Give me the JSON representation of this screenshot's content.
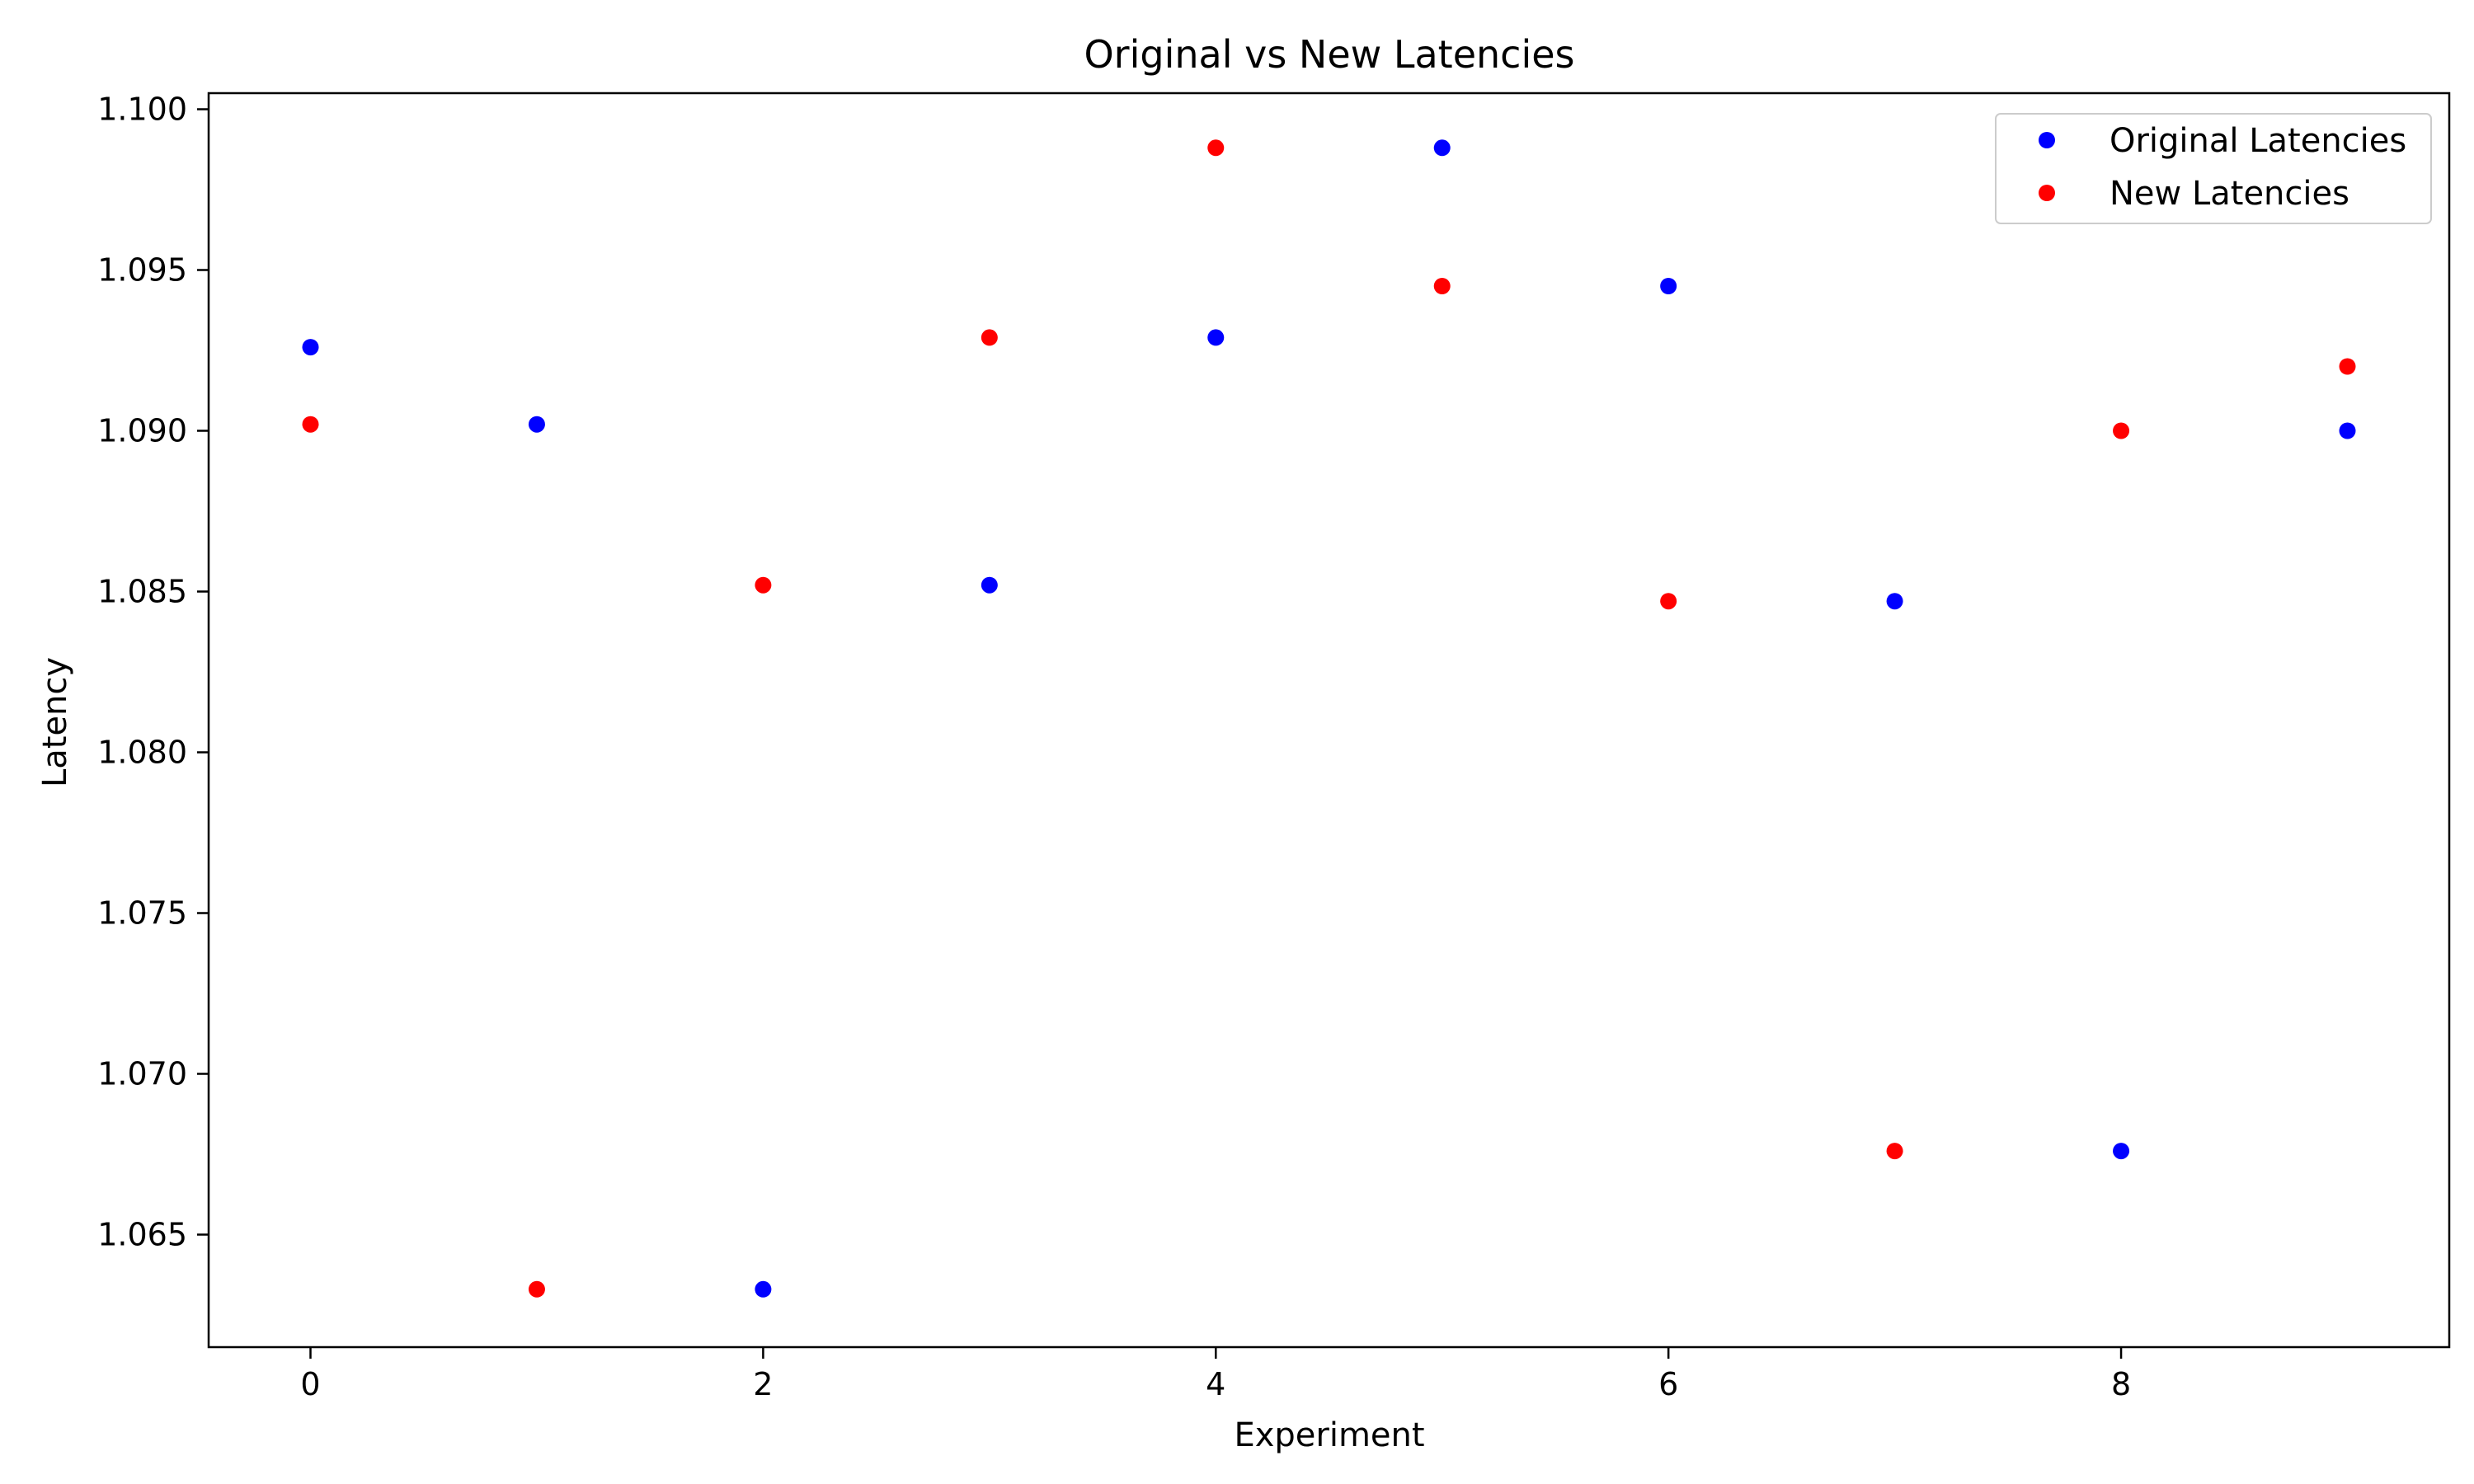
{
  "chart_data": {
    "type": "scatter",
    "title": "Original vs New Latencies",
    "xlabel": "Experiment",
    "ylabel": "Latency",
    "xlim": [
      -0.45,
      9.45
    ],
    "ylim": [
      1.0615,
      1.1005
    ],
    "xticks": [
      0,
      2,
      4,
      6,
      8
    ],
    "xtick_labels": [
      "0",
      "2",
      "4",
      "6",
      "8"
    ],
    "yticks": [
      1.065,
      1.07,
      1.075,
      1.08,
      1.085,
      1.09,
      1.095,
      1.1
    ],
    "ytick_labels": [
      "1.065",
      "1.070",
      "1.075",
      "1.080",
      "1.085",
      "1.090",
      "1.095",
      "1.100"
    ],
    "grid": false,
    "legend_position": "top-right",
    "series": [
      {
        "name": "Original Latencies",
        "color": "#0000ff",
        "x": [
          0,
          1,
          2,
          3,
          4,
          5,
          6,
          7,
          8,
          9
        ],
        "y": [
          1.0926,
          1.0902,
          1.0633,
          1.0852,
          1.0929,
          1.0988,
          1.0945,
          1.0847,
          1.0676,
          1.09
        ]
      },
      {
        "name": "New Latencies",
        "color": "#ff0000",
        "x": [
          0,
          1,
          2,
          3,
          4,
          5,
          6,
          7,
          8,
          9
        ],
        "y": [
          1.0902,
          1.0633,
          1.0852,
          1.0929,
          1.0988,
          1.0945,
          1.0847,
          1.0676,
          1.09,
          1.092
        ]
      }
    ]
  }
}
